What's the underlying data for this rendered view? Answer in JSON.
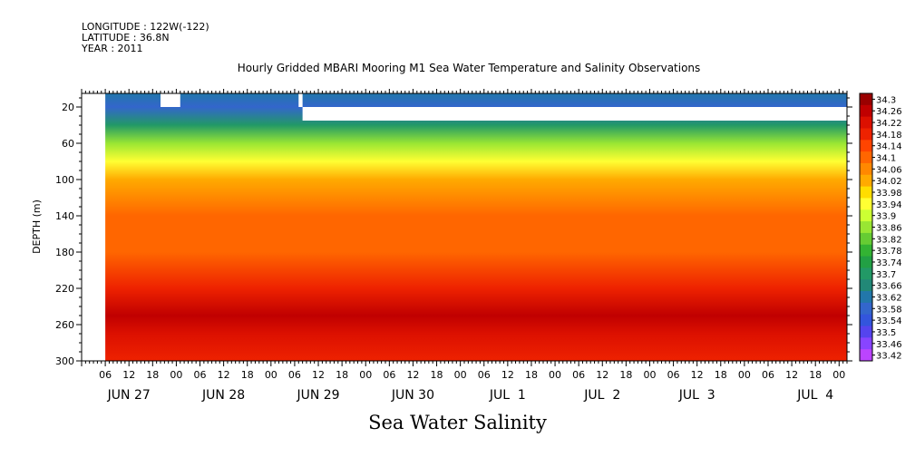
{
  "header": {
    "longitude": "LONGITUDE : 122W(-122)",
    "latitude": "LATITUDE : 36.8N",
    "year": "YEAR : 2011"
  },
  "chart_data": {
    "type": "heatmap",
    "title": "Hourly Gridded MBARI Mooring M1 Sea Water Temperature and Salinity Observations",
    "xlabel": "Sea Water Salinity",
    "ylabel": "DEPTH (m)",
    "y_reversed": true,
    "ylim": [
      300,
      5
    ],
    "y_ticks": [
      20,
      60,
      100,
      140,
      180,
      220,
      260,
      300
    ],
    "x_range_hours": [
      0,
      194
    ],
    "x_hour_labels": [
      "06",
      "12",
      "18",
      "00",
      "06",
      "12",
      "18",
      "00",
      "06",
      "12",
      "18",
      "00",
      "06",
      "12",
      "18",
      "00",
      "06",
      "12",
      "18",
      "00",
      "06",
      "12",
      "18",
      "00",
      "06",
      "12",
      "18",
      "00",
      "06",
      "12",
      "18",
      "00"
    ],
    "x_day_labels": [
      {
        "label": "JUN 27",
        "hour": 12
      },
      {
        "label": "JUN 28",
        "hour": 36
      },
      {
        "label": "JUN 29",
        "hour": 60
      },
      {
        "label": "JUN 30",
        "hour": 84
      },
      {
        "label": "JUL  1",
        "hour": 108
      },
      {
        "label": "JUL  2",
        "hour": 132
      },
      {
        "label": "JUL  3",
        "hour": 156
      },
      {
        "label": "JUL  4",
        "hour": 186
      }
    ],
    "colorbar_levels": [
      "34.3",
      "34.26",
      "34.22",
      "34.18",
      "34.14",
      "34.1",
      "34.06",
      "34.02",
      "33.98",
      "33.94",
      "33.9",
      "33.86",
      "33.82",
      "33.78",
      "33.74",
      "33.7",
      "33.66",
      "33.62",
      "33.58",
      "33.54",
      "33.5",
      "33.46",
      "33.42"
    ],
    "colorbar_colors": [
      "#9a0000",
      "#c00000",
      "#dc1000",
      "#ee2200",
      "#ff4400",
      "#ff6600",
      "#ff8800",
      "#ffaa00",
      "#ffdd00",
      "#ffff33",
      "#ccff33",
      "#99e633",
      "#66cc33",
      "#33b333",
      "#22a044",
      "#229966",
      "#228877",
      "#2277aa",
      "#3366cc",
      "#3355dd",
      "#5544ee",
      "#8844ff",
      "#bb44ff"
    ],
    "depth_profile": [
      {
        "depth": 5,
        "salinity": 33.62
      },
      {
        "depth": 20,
        "salinity": 33.56
      },
      {
        "depth": 40,
        "salinity": 33.68
      },
      {
        "depth": 60,
        "salinity": 33.84
      },
      {
        "depth": 80,
        "salinity": 33.95
      },
      {
        "depth": 100,
        "salinity": 34.0
      },
      {
        "depth": 120,
        "salinity": 34.06
      },
      {
        "depth": 140,
        "salinity": 34.11
      },
      {
        "depth": 180,
        "salinity": 34.12
      },
      {
        "depth": 220,
        "salinity": 34.17
      },
      {
        "depth": 250,
        "salinity": 34.27
      },
      {
        "depth": 270,
        "salinity": 34.23
      },
      {
        "depth": 300,
        "salinity": 34.18
      }
    ],
    "missing_regions": [
      {
        "x0": 0,
        "x1": 6,
        "d0": 5,
        "d1": 300
      },
      {
        "x0": 20,
        "x1": 25,
        "d0": 5,
        "d1": 20
      },
      {
        "x0": 55,
        "x1": 56,
        "d0": 5,
        "d1": 20
      },
      {
        "x0": 56,
        "x1": 194,
        "d0": 20,
        "d1": 35
      }
    ]
  }
}
